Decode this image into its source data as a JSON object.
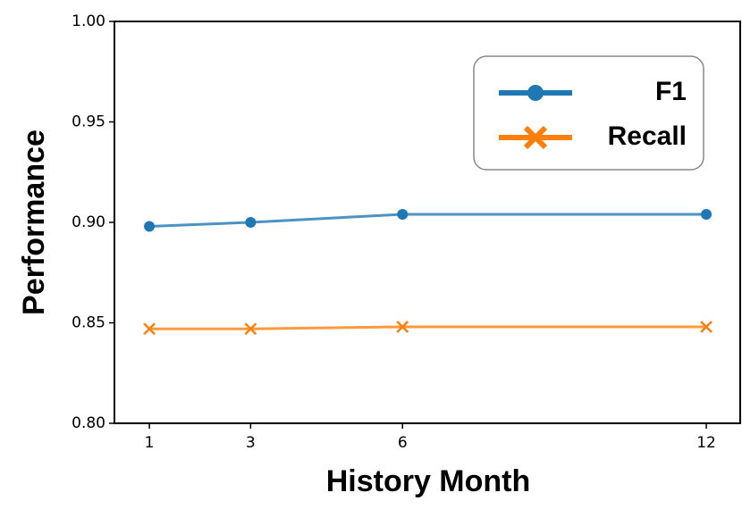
{
  "chart_data": {
    "type": "line",
    "x_label": "History Month",
    "y_label": "Performance",
    "x": [
      1,
      3,
      6,
      12
    ],
    "series": [
      {
        "name": "F1",
        "color": "#1f77b4",
        "marker": "circle",
        "values": [
          0.898,
          0.9,
          0.904,
          0.904
        ]
      },
      {
        "name": "Recall",
        "color": "#ff7f0e",
        "marker": "x",
        "values": [
          0.847,
          0.847,
          0.848,
          0.848
        ]
      }
    ],
    "xlim": [
      0.31,
      12.67
    ],
    "xticks": [
      1,
      3,
      6,
      12
    ],
    "ylim": [
      0.8,
      1.0
    ],
    "yticks": [
      {
        "value": 0.8,
        "label": "0.80"
      },
      {
        "value": 0.85,
        "label": "0.85"
      },
      {
        "value": 0.9,
        "label": "0.90"
      },
      {
        "value": 0.95,
        "label": "0.95"
      },
      {
        "value": 1.0,
        "label": "1.00"
      }
    ],
    "legend": "upper right",
    "grid": false
  }
}
